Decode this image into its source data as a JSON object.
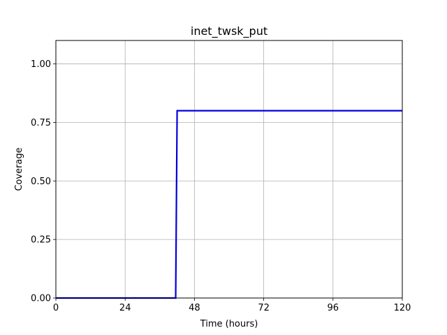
{
  "chart_data": {
    "type": "line",
    "title": "inet_twsk_put",
    "xlabel": "Time (hours)",
    "ylabel": "Coverage",
    "xlim": [
      0,
      120
    ],
    "ylim": [
      0,
      1.1
    ],
    "xticks": [
      0,
      24,
      48,
      72,
      96,
      120
    ],
    "xtick_labels": [
      "0",
      "24",
      "48",
      "72",
      "96",
      "120"
    ],
    "yticks": [
      0,
      0.25,
      0.5,
      0.75,
      1.0
    ],
    "ytick_labels": [
      "0.00",
      "0.25",
      "0.50",
      "0.75",
      "1.00"
    ],
    "grid": true,
    "series": [
      {
        "color": "#0000dd",
        "x": [
          0,
          41.5,
          42,
          120
        ],
        "y": [
          0,
          0,
          0.8,
          0.8
        ]
      }
    ]
  }
}
